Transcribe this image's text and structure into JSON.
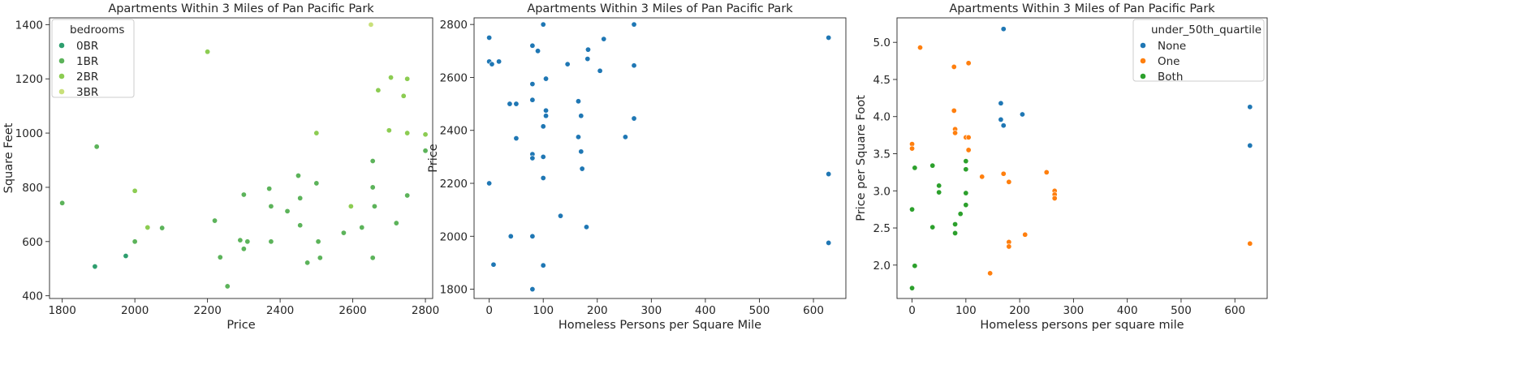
{
  "chart_data": [
    {
      "type": "scatter",
      "title": "Apartments Within 3 Miles of Pan Pacific Park",
      "xlabel": "Price",
      "ylabel": "Square Feet",
      "xlim": [
        1765,
        2820
      ],
      "ylim": [
        390,
        1425
      ],
      "xticks": [
        1800,
        2000,
        2200,
        2400,
        2600,
        2800
      ],
      "yticks": [
        400,
        600,
        800,
        1000,
        1200,
        1400
      ],
      "grid": false,
      "legend": {
        "title": "bedrooms",
        "placement": "top-left",
        "entries": [
          {
            "label": "0BR",
            "color": "#2e9e6e"
          },
          {
            "label": "1BR",
            "color": "#5cb35a"
          },
          {
            "label": "2BR",
            "color": "#8ccc52"
          },
          {
            "label": "3BR",
            "color": "#c9e07a"
          }
        ]
      },
      "series": [
        {
          "name": "0BR",
          "color": "#2e9e6e",
          "points": [
            [
              1890,
              508
            ],
            [
              1975,
              547
            ]
          ]
        },
        {
          "name": "1BR",
          "color": "#5cb35a",
          "points": [
            [
              1800,
              742
            ],
            [
              1895,
              950
            ],
            [
              2000,
              600
            ],
            [
              2075,
              650
            ],
            [
              2220,
              677
            ],
            [
              2235,
              542
            ],
            [
              2255,
              435
            ],
            [
              2290,
              605
            ],
            [
              2300,
              573
            ],
            [
              2310,
              600
            ],
            [
              2370,
              795
            ],
            [
              2375,
              730
            ],
            [
              2375,
              600
            ],
            [
              2420,
              712
            ],
            [
              2450,
              843
            ],
            [
              2455,
              760
            ],
            [
              2455,
              660
            ],
            [
              2475,
              522
            ],
            [
              2500,
              815
            ],
            [
              2505,
              600
            ],
            [
              2510,
              540
            ],
            [
              2575,
              632
            ],
            [
              2625,
              652
            ],
            [
              2655,
              800
            ],
            [
              2655,
              540
            ],
            [
              2660,
              730
            ],
            [
              2720,
              668
            ],
            [
              2750,
              770
            ],
            [
              2800,
              935
            ],
            [
              2655,
              897
            ],
            [
              2300,
              773
            ]
          ]
        },
        {
          "name": "2BR",
          "color": "#8ccc52",
          "points": [
            [
              2000,
              787
            ],
            [
              2035,
              652
            ],
            [
              2200,
              1300
            ],
            [
              2500,
              1000
            ],
            [
              2595,
              730
            ],
            [
              2670,
              1158
            ],
            [
              2700,
              1010
            ],
            [
              2705,
              1205
            ],
            [
              2740,
              1137
            ],
            [
              2750,
              1200
            ],
            [
              2750,
              1000
            ],
            [
              2800,
              995
            ]
          ]
        },
        {
          "name": "3BR",
          "color": "#c9e07a",
          "points": [
            [
              2650,
              1400
            ]
          ]
        }
      ]
    },
    {
      "type": "scatter",
      "title": "Apartments Within 3 Miles of Pan Pacific Park",
      "xlabel": "Homeless Persons per Square Mile",
      "ylabel": "Price",
      "xlim": [
        -28,
        660
      ],
      "ylim": [
        1765,
        2825
      ],
      "xticks": [
        0,
        100,
        200,
        300,
        400,
        500,
        600
      ],
      "yticks": [
        1800,
        2000,
        2200,
        2400,
        2600,
        2800
      ],
      "grid": false,
      "series": [
        {
          "name": "",
          "color": "#1f77b4",
          "points": [
            [
              0,
              2750
            ],
            [
              0,
              2660
            ],
            [
              5,
              2650
            ],
            [
              18,
              2660
            ],
            [
              38,
              2500
            ],
            [
              50,
              2500
            ],
            [
              50,
              2370
            ],
            [
              80,
              2720
            ],
            [
              80,
              2575
            ],
            [
              80,
              2515
            ],
            [
              80,
              2310
            ],
            [
              80,
              2295
            ],
            [
              80,
              2000
            ],
            [
              40,
              2000
            ],
            [
              80,
              1800
            ],
            [
              90,
              2700
            ],
            [
              100,
              2800
            ],
            [
              100,
              2415
            ],
            [
              100,
              2300
            ],
            [
              100,
              2220
            ],
            [
              100,
              1890
            ],
            [
              105,
              2475
            ],
            [
              105,
              2455
            ],
            [
              105,
              2595
            ],
            [
              145,
              2650
            ],
            [
              165,
              2510
            ],
            [
              165,
              2375
            ],
            [
              170,
              2455
            ],
            [
              170,
              2320
            ],
            [
              172,
              2255
            ],
            [
              180,
              2035
            ],
            [
              182,
              2670
            ],
            [
              183,
              2705
            ],
            [
              205,
              2625
            ],
            [
              212,
              2745
            ],
            [
              252,
              2375
            ],
            [
              268,
              2800
            ],
            [
              268,
              2645
            ],
            [
              268,
              2445
            ],
            [
              628,
              2750
            ],
            [
              628,
              2235
            ],
            [
              628,
              1975
            ],
            [
              0,
              2200
            ],
            [
              8,
              1893
            ],
            [
              132,
              2077
            ]
          ]
        }
      ]
    },
    {
      "type": "scatter",
      "title": "Apartments Within 3 Miles of Pan Pacific Park",
      "xlabel": "Homeless persons per square mile",
      "ylabel": "Price per Square Foot",
      "xlim": [
        -28,
        660
      ],
      "ylim": [
        1.55,
        5.33
      ],
      "xticks": [
        0,
        100,
        200,
        300,
        400,
        500,
        600
      ],
      "yticks": [
        2.0,
        2.5,
        3.0,
        3.5,
        4.0,
        4.5,
        5.0
      ],
      "grid": false,
      "legend": {
        "title": "under_50th_quartile",
        "placement": "top-right",
        "entries": [
          {
            "label": "None",
            "color": "#1f77b4"
          },
          {
            "label": "One",
            "color": "#ff7f0e"
          },
          {
            "label": "Both",
            "color": "#2ca02c"
          }
        ]
      },
      "series": [
        {
          "name": "None",
          "color": "#1f77b4",
          "points": [
            [
              170,
              5.18
            ],
            [
              165,
              4.18
            ],
            [
              165,
              3.96
            ],
            [
              170,
              3.88
            ],
            [
              205,
              4.03
            ],
            [
              628,
              4.13
            ],
            [
              628,
              3.61
            ]
          ]
        },
        {
          "name": "One",
          "color": "#ff7f0e",
          "points": [
            [
              15,
              4.93
            ],
            [
              78,
              4.67
            ],
            [
              105,
              4.72
            ],
            [
              78,
              4.08
            ],
            [
              80,
              3.83
            ],
            [
              80,
              3.78
            ],
            [
              100,
              3.72
            ],
            [
              105,
              3.72
            ],
            [
              105,
              3.55
            ],
            [
              0,
              3.63
            ],
            [
              0,
              3.57
            ],
            [
              130,
              3.19
            ],
            [
              170,
              3.23
            ],
            [
              180,
              3.12
            ],
            [
              180,
              2.31
            ],
            [
              180,
              2.25
            ],
            [
              210,
              2.41
            ],
            [
              145,
              1.89
            ],
            [
              250,
              3.25
            ],
            [
              265,
              3.0
            ],
            [
              265,
              2.95
            ],
            [
              265,
              2.9
            ],
            [
              628,
              2.29
            ]
          ]
        },
        {
          "name": "Both",
          "color": "#2ca02c",
          "points": [
            [
              0,
              2.75
            ],
            [
              5,
              3.31
            ],
            [
              5,
              1.99
            ],
            [
              0,
              1.69
            ],
            [
              38,
              3.34
            ],
            [
              50,
              3.07
            ],
            [
              50,
              2.98
            ],
            [
              38,
              2.51
            ],
            [
              80,
              2.55
            ],
            [
              80,
              2.43
            ],
            [
              90,
              2.69
            ],
            [
              100,
              3.4
            ],
            [
              100,
              3.29
            ],
            [
              100,
              2.97
            ],
            [
              100,
              2.81
            ]
          ]
        }
      ]
    }
  ]
}
